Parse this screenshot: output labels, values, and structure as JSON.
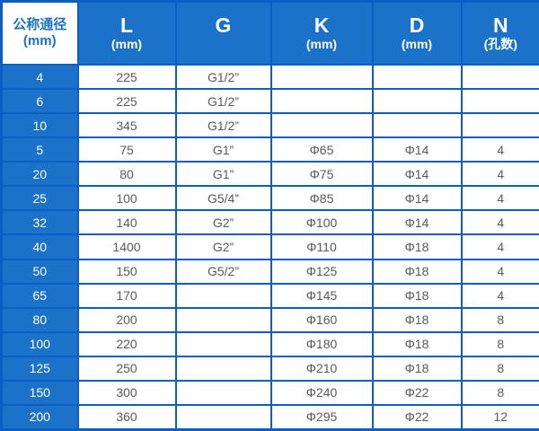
{
  "chart_data": {
    "type": "table",
    "columns": [
      {
        "line1": "公称通径",
        "line2": "(mm)"
      },
      {
        "line1": "L",
        "line2": "(mm)"
      },
      {
        "line1": "G",
        "line2": ""
      },
      {
        "line1": "K",
        "line2": "(mm)"
      },
      {
        "line1": "D",
        "line2": "(mm)"
      },
      {
        "line1": "N",
        "line2": "(孔数)"
      }
    ],
    "rows": [
      [
        "4",
        "225",
        "G1/2”",
        "",
        "",
        ""
      ],
      [
        "6",
        "225",
        "G1/2”",
        "",
        "",
        ""
      ],
      [
        "10",
        "345",
        "G1/2”",
        "",
        "",
        ""
      ],
      [
        "5",
        "75",
        "G1”",
        "Φ65",
        "Φ14",
        "4"
      ],
      [
        "20",
        "80",
        "G1”",
        "Φ75",
        "Φ14",
        "4"
      ],
      [
        "25",
        "100",
        "G5/4”",
        "Φ85",
        "Φ14",
        "4"
      ],
      [
        "32",
        "140",
        "G2”",
        "Φ100",
        "Φ14",
        "4"
      ],
      [
        "40",
        "1400",
        "G2”",
        "Φ110",
        "Φ18",
        "4"
      ],
      [
        "50",
        "150",
        "G5/2”",
        "Φ125",
        "Φ18",
        "4"
      ],
      [
        "65",
        "170",
        "",
        "Φ145",
        "Φ18",
        "4"
      ],
      [
        "80",
        "200",
        "",
        "Φ160",
        "Φ18",
        "8"
      ],
      [
        "100",
        "220",
        "",
        "Φ180",
        "Φ18",
        "8"
      ],
      [
        "125",
        "250",
        "",
        "Φ210",
        "Φ18",
        "8"
      ],
      [
        "150",
        "300",
        "",
        "Φ240",
        "Φ22",
        "8"
      ],
      [
        "200",
        "360",
        "",
        "Φ295",
        "Φ22",
        "12"
      ]
    ]
  },
  "colors": {
    "cell_blue": "#1b72c8",
    "border_blue": "#0d5ec2",
    "body_text": "#58595b",
    "header_text": "#ffffff"
  }
}
